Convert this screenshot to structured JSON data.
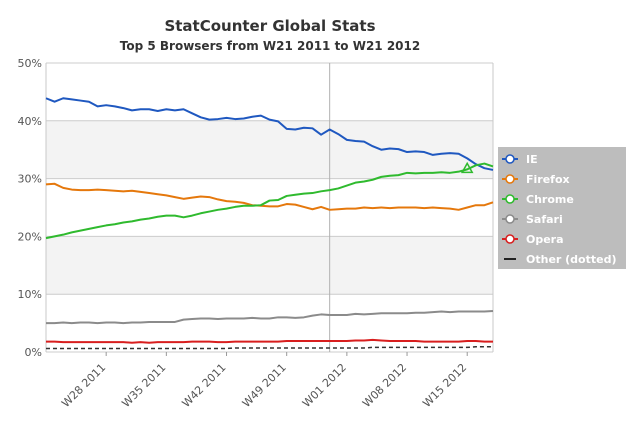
{
  "chart_data": {
    "type": "line",
    "title": "StatCounter Global Stats",
    "subtitle": "Top 5 Browsers from W21 2011 to W21 2012",
    "xlabel": "",
    "ylabel": "",
    "ylim": [
      0,
      50
    ],
    "y_tick_labels": [
      "0%",
      "10%",
      "20%",
      "30%",
      "40%",
      "50%"
    ],
    "y_ticks": [
      0,
      10,
      20,
      30,
      40,
      50
    ],
    "x_tick_labels": [
      "W28 2011",
      "W35 2011",
      "W42 2011",
      "W49 2011",
      "W01 2012",
      "W08 2012",
      "W15 2012"
    ],
    "x_tick_positions": [
      7,
      14,
      21,
      28,
      35,
      42,
      49
    ],
    "x_range": [
      0,
      52
    ],
    "grid": true,
    "legend_placement": "right",
    "series": [
      {
        "name": "IE",
        "color": "#1f58c0",
        "values": [
          43.9,
          43.3,
          43.9,
          43.7,
          43.5,
          43.3,
          42.5,
          42.7,
          42.5,
          42.2,
          41.8,
          42.0,
          42.0,
          41.7,
          42.0,
          41.8,
          42.0,
          41.3,
          40.6,
          40.2,
          40.3,
          40.5,
          40.3,
          40.4,
          40.7,
          40.9,
          40.2,
          39.9,
          38.6,
          38.5,
          38.8,
          38.7,
          37.6,
          38.5,
          37.7,
          36.7,
          36.5,
          36.4,
          35.6,
          35.0,
          35.2,
          35.1,
          34.6,
          34.7,
          34.6,
          34.1,
          34.3,
          34.4,
          34.3,
          33.5,
          32.5,
          31.8,
          31.5
        ]
      },
      {
        "name": "Firefox",
        "color": "#e5780c",
        "values": [
          29.0,
          29.1,
          28.4,
          28.1,
          28.0,
          28.0,
          28.1,
          28.0,
          27.9,
          27.8,
          27.9,
          27.7,
          27.5,
          27.3,
          27.1,
          26.8,
          26.5,
          26.7,
          26.9,
          26.8,
          26.4,
          26.1,
          26.0,
          25.8,
          25.4,
          25.3,
          25.2,
          25.2,
          25.6,
          25.5,
          25.1,
          24.7,
          25.1,
          24.6,
          24.7,
          24.8,
          24.8,
          25.0,
          24.9,
          25.0,
          24.9,
          25.0,
          25.0,
          25.0,
          24.9,
          25.0,
          24.9,
          24.8,
          24.6,
          25.0,
          25.4,
          25.4,
          25.9
        ]
      },
      {
        "name": "Chrome",
        "color": "#2fba2e",
        "values": [
          19.7,
          20.0,
          20.3,
          20.7,
          21.0,
          21.3,
          21.6,
          21.9,
          22.1,
          22.4,
          22.6,
          22.9,
          23.1,
          23.4,
          23.6,
          23.6,
          23.3,
          23.6,
          24.0,
          24.3,
          24.6,
          24.8,
          25.1,
          25.3,
          25.3,
          25.4,
          26.2,
          26.3,
          27.0,
          27.2,
          27.4,
          27.5,
          27.8,
          28.0,
          28.3,
          28.8,
          29.3,
          29.5,
          29.8,
          30.3,
          30.5,
          30.6,
          31.0,
          30.9,
          31.0,
          31.0,
          31.1,
          31.0,
          31.2,
          31.6,
          32.3,
          32.6,
          32.1
        ]
      },
      {
        "name": "Safari",
        "color": "#8b8b8b",
        "values": [
          5.0,
          5.0,
          5.1,
          5.0,
          5.1,
          5.1,
          5.0,
          5.1,
          5.1,
          5.0,
          5.1,
          5.1,
          5.2,
          5.2,
          5.2,
          5.2,
          5.6,
          5.7,
          5.8,
          5.8,
          5.7,
          5.8,
          5.8,
          5.8,
          5.9,
          5.8,
          5.8,
          6.0,
          6.0,
          5.9,
          6.0,
          6.3,
          6.5,
          6.4,
          6.4,
          6.4,
          6.6,
          6.5,
          6.6,
          6.7,
          6.7,
          6.7,
          6.7,
          6.8,
          6.8,
          6.9,
          7.0,
          6.9,
          7.0,
          7.0,
          7.0,
          7.0,
          7.1
        ]
      },
      {
        "name": "Opera",
        "color": "#d81e1e",
        "values": [
          1.8,
          1.8,
          1.7,
          1.7,
          1.7,
          1.7,
          1.7,
          1.7,
          1.7,
          1.7,
          1.6,
          1.7,
          1.6,
          1.7,
          1.7,
          1.7,
          1.7,
          1.8,
          1.8,
          1.8,
          1.7,
          1.7,
          1.8,
          1.8,
          1.8,
          1.8,
          1.8,
          1.8,
          1.9,
          1.9,
          1.9,
          1.9,
          1.9,
          1.9,
          1.9,
          1.9,
          2.0,
          2.0,
          2.1,
          2.0,
          1.9,
          1.9,
          1.9,
          1.9,
          1.8,
          1.8,
          1.8,
          1.8,
          1.8,
          1.9,
          1.9,
          1.8,
          1.8
        ]
      },
      {
        "name": "Other (dotted)",
        "color": "#333333",
        "dotted": true,
        "values": [
          0.6,
          0.6,
          0.6,
          0.6,
          0.6,
          0.6,
          0.6,
          0.6,
          0.6,
          0.6,
          0.6,
          0.6,
          0.6,
          0.6,
          0.6,
          0.6,
          0.6,
          0.6,
          0.6,
          0.6,
          0.6,
          0.6,
          0.7,
          0.7,
          0.7,
          0.7,
          0.7,
          0.7,
          0.7,
          0.7,
          0.7,
          0.7,
          0.7,
          0.7,
          0.7,
          0.7,
          0.7,
          0.7,
          0.8,
          0.8,
          0.8,
          0.8,
          0.8,
          0.8,
          0.8,
          0.8,
          0.8,
          0.8,
          0.8,
          0.8,
          0.9,
          0.9,
          0.9
        ]
      }
    ]
  }
}
